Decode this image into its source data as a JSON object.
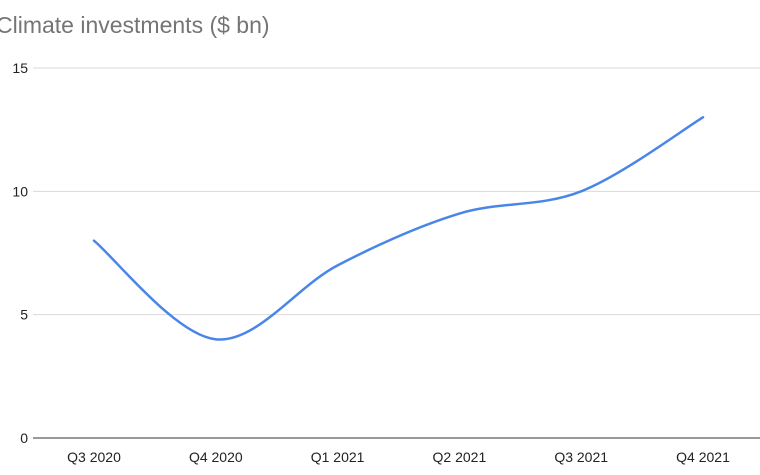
{
  "chart_data": {
    "type": "line",
    "title": "Climate investments ($ bn)",
    "xlabel": "",
    "ylabel": "",
    "categories": [
      "Q3 2020",
      "Q4 2020",
      "Q1 2021",
      "Q2 2021",
      "Q3 2021",
      "Q4 2021"
    ],
    "series": [
      {
        "values": [
          8,
          4,
          7,
          9.1,
          10,
          13
        ],
        "color": "#4a86e8"
      }
    ],
    "ylim": [
      0,
      15
    ],
    "yticks": [
      0,
      5,
      10,
      15
    ],
    "grid": true,
    "legend": "none",
    "smooth": true
  }
}
